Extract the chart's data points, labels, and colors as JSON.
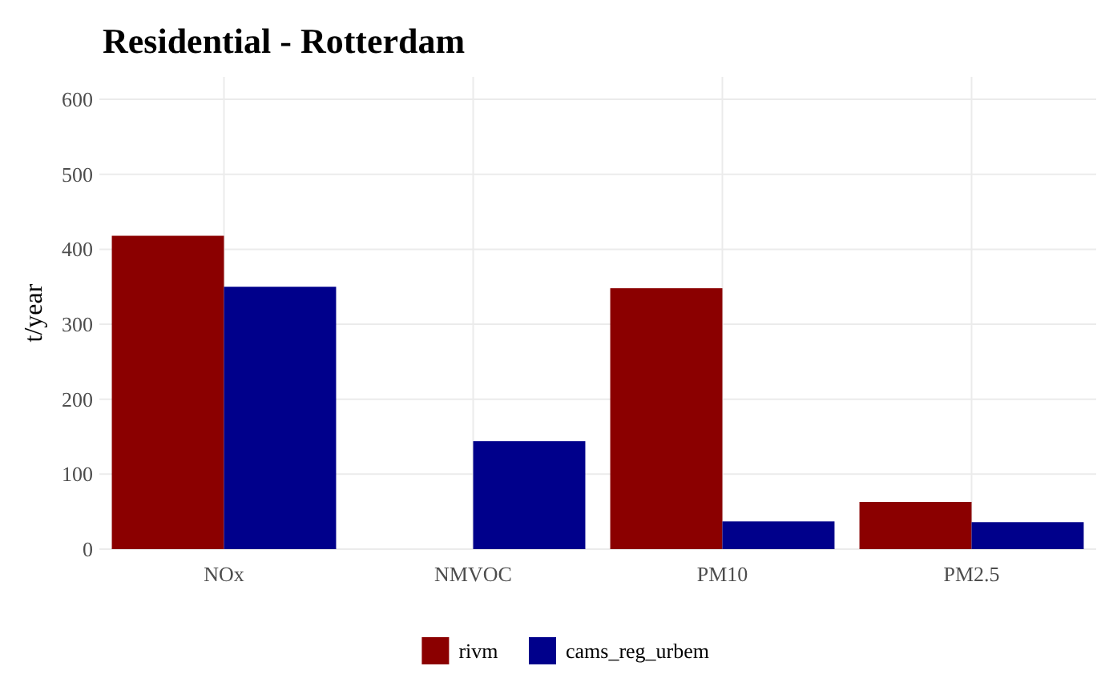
{
  "chart_data": {
    "type": "bar",
    "title": "Residential - Rotterdam",
    "ylabel": "t/year",
    "categories": [
      "NOx",
      "NMVOC",
      "PM10",
      "PM2.5"
    ],
    "series": [
      {
        "name": "rivm",
        "color": "#8b0000",
        "values": [
          418,
          null,
          348,
          63
        ]
      },
      {
        "name": "cams_reg_urbem",
        "color": "#00008b",
        "values": [
          350,
          144,
          37,
          36
        ]
      }
    ],
    "ylim": [
      0,
      630
    ],
    "yticks": [
      0,
      100,
      200,
      300,
      400,
      500,
      600
    ],
    "grid": true,
    "legend": "bottom"
  }
}
